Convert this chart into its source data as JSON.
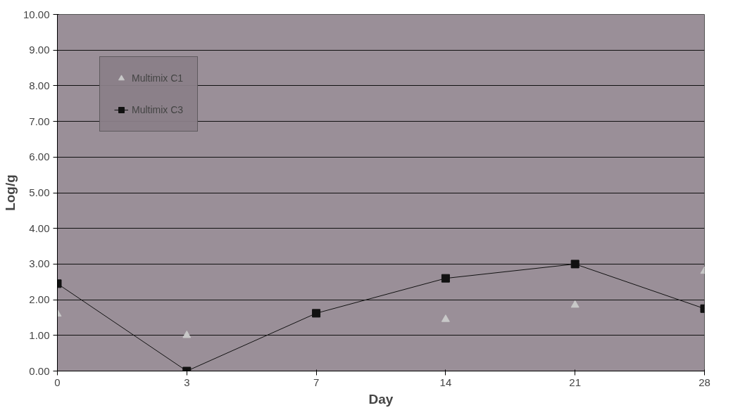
{
  "chart_data": {
    "type": "line",
    "xlabel": "Day",
    "ylabel": "Log/g",
    "categories": [
      "0",
      "3",
      "7",
      "14",
      "21",
      "28"
    ],
    "ylim": [
      0,
      10
    ],
    "yticks": [
      {
        "value": 0,
        "label": "0.00"
      },
      {
        "value": 1,
        "label": "1.00"
      },
      {
        "value": 2,
        "label": "2.00"
      },
      {
        "value": 3,
        "label": "3.00"
      },
      {
        "value": 4,
        "label": "4.00"
      },
      {
        "value": 5,
        "label": "5.00"
      },
      {
        "value": 6,
        "label": "6.00"
      },
      {
        "value": 7,
        "label": "7.00"
      },
      {
        "value": 8,
        "label": "8.00"
      },
      {
        "value": 9,
        "label": "9.00"
      },
      {
        "value": 10,
        "label": "10.00"
      }
    ],
    "grid": "y",
    "legend": "top left",
    "series": [
      {
        "name": "Multimix C1",
        "type": "scatter",
        "marker": "triangle",
        "color": "#c8c8c8",
        "values": [
          1.6,
          1.0,
          null,
          1.45,
          1.85,
          2.8
        ]
      },
      {
        "name": "Multimix C3",
        "marker": "square",
        "color": "#111111",
        "values": [
          2.45,
          0.0,
          1.62,
          2.6,
          3.0,
          1.75
        ]
      }
    ]
  }
}
